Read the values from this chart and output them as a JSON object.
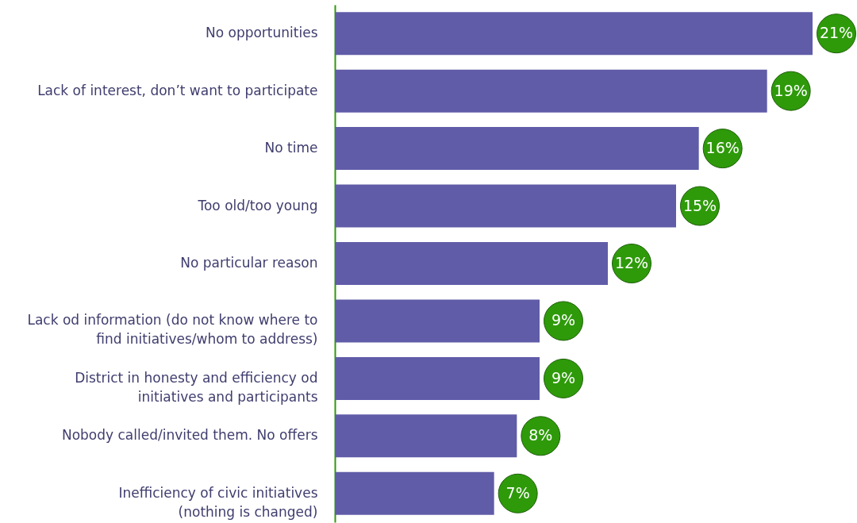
{
  "chart_data": {
    "type": "bar",
    "orientation": "horizontal",
    "categories": [
      "No opportunities",
      "Lack of interest, don’t want to participate",
      "No time",
      "Too old/too young",
      "No particular reason",
      "Lack od information (do not know where to\nfind initiatives/whom to address)",
      "District in honesty and efficiency od\ninitiatives and participants",
      "Nobody called/invited them. No offers",
      "Inefficiency of civic initiatives\n(nothing is changed)"
    ],
    "values": [
      21,
      19,
      16,
      15,
      12,
      9,
      9,
      8,
      7
    ],
    "color": "#605ca8",
    "value_labels": [
      "21%",
      "19%",
      "16%",
      "15%",
      "12%",
      "9%",
      "9%",
      "8%",
      "7%"
    ],
    "tick_labels": "y"
  }
}
